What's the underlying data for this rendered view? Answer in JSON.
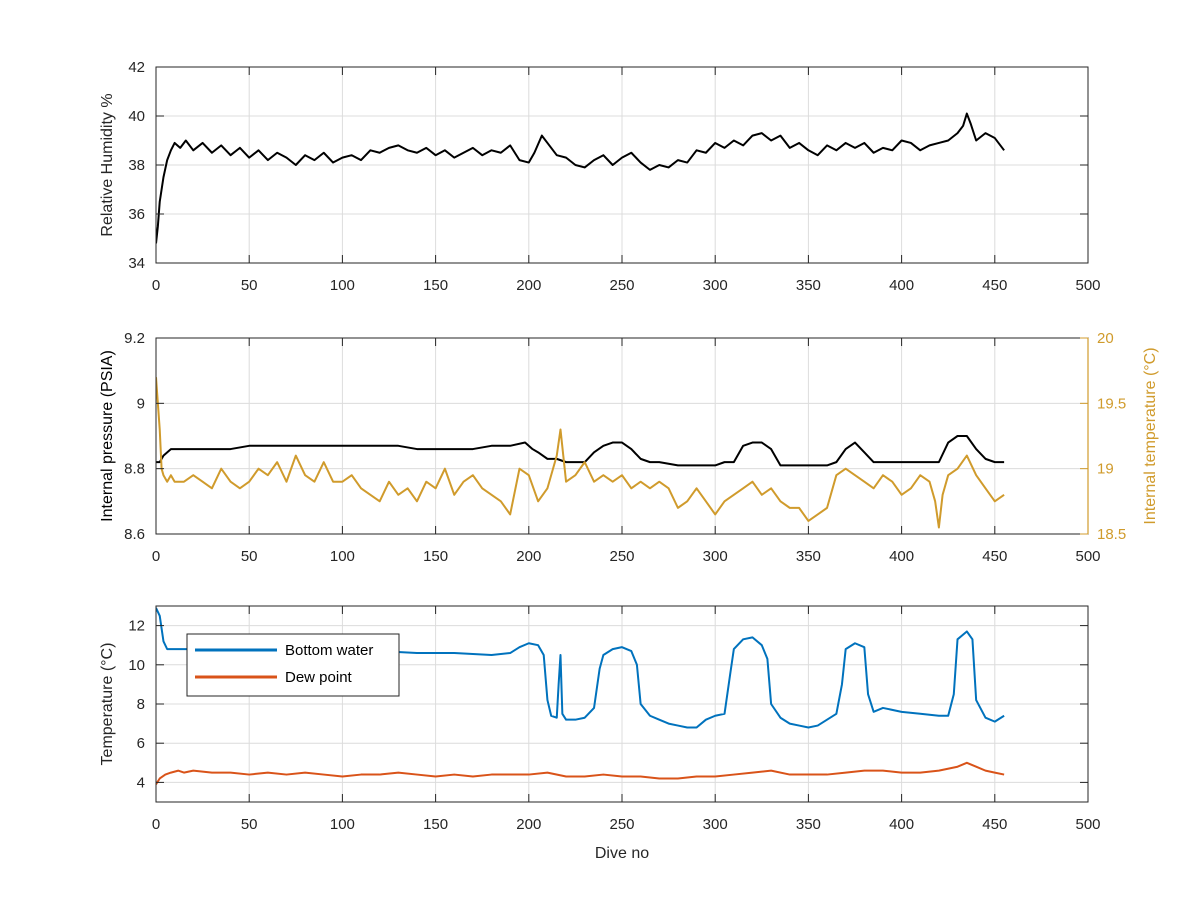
{
  "chart_data": [
    {
      "type": "line",
      "name": "humidity-panel",
      "xlim": [
        0,
        500
      ],
      "ylim": [
        34,
        42
      ],
      "xticks": [
        0,
        50,
        100,
        150,
        200,
        250,
        300,
        350,
        400,
        450,
        500
      ],
      "yticks": [
        34,
        36,
        38,
        40,
        42
      ],
      "xtick_labels": [
        "0",
        "50",
        "100",
        "150",
        "200",
        "250",
        "300",
        "350",
        "400",
        "450",
        "500"
      ],
      "ytick_labels": [
        "34",
        "36",
        "38",
        "40",
        "42"
      ],
      "ylabel": "Relative Humidity %",
      "xlabel": "",
      "grid": true,
      "series": [
        {
          "color": "#000000",
          "x": [
            0,
            1,
            2,
            4,
            6,
            8,
            10,
            13,
            16,
            20,
            25,
            30,
            35,
            40,
            45,
            50,
            55,
            60,
            65,
            70,
            75,
            80,
            85,
            90,
            95,
            100,
            105,
            110,
            115,
            120,
            125,
            130,
            135,
            140,
            145,
            150,
            155,
            160,
            165,
            170,
            175,
            180,
            185,
            190,
            195,
            200,
            203,
            207,
            210,
            215,
            220,
            225,
            230,
            235,
            240,
            245,
            250,
            255,
            260,
            265,
            270,
            275,
            280,
            285,
            290,
            295,
            300,
            305,
            310,
            315,
            320,
            325,
            330,
            335,
            340,
            345,
            350,
            355,
            360,
            365,
            370,
            375,
            380,
            385,
            390,
            395,
            400,
            405,
            410,
            415,
            420,
            425,
            430,
            433,
            435,
            437,
            440,
            445,
            450,
            455
          ],
          "y": [
            34.8,
            35.5,
            36.5,
            37.5,
            38.2,
            38.6,
            38.9,
            38.7,
            39.0,
            38.6,
            38.9,
            38.5,
            38.8,
            38.4,
            38.7,
            38.3,
            38.6,
            38.2,
            38.5,
            38.3,
            38.0,
            38.4,
            38.2,
            38.5,
            38.1,
            38.3,
            38.4,
            38.2,
            38.6,
            38.5,
            38.7,
            38.8,
            38.6,
            38.5,
            38.7,
            38.4,
            38.6,
            38.3,
            38.5,
            38.7,
            38.4,
            38.6,
            38.5,
            38.8,
            38.2,
            38.1,
            38.5,
            39.2,
            38.9,
            38.4,
            38.3,
            38.0,
            37.9,
            38.2,
            38.4,
            38.0,
            38.3,
            38.5,
            38.1,
            37.8,
            38.0,
            37.9,
            38.2,
            38.1,
            38.6,
            38.5,
            38.9,
            38.7,
            39.0,
            38.8,
            39.2,
            39.3,
            39.0,
            39.2,
            38.7,
            38.9,
            38.6,
            38.4,
            38.8,
            38.6,
            38.9,
            38.7,
            38.9,
            38.5,
            38.7,
            38.6,
            39.0,
            38.9,
            38.6,
            38.8,
            38.9,
            39.0,
            39.3,
            39.6,
            40.1,
            39.7,
            39.0,
            39.3,
            39.1,
            38.6
          ]
        }
      ]
    },
    {
      "type": "line",
      "name": "pressure-panel",
      "xlim": [
        0,
        500
      ],
      "ylim": [
        8.6,
        9.2
      ],
      "ylim_right": [
        18.5,
        20
      ],
      "xticks": [
        0,
        50,
        100,
        150,
        200,
        250,
        300,
        350,
        400,
        450,
        500
      ],
      "yticks": [
        8.6,
        8.8,
        9.0,
        9.2
      ],
      "yticks_right": [
        18.5,
        19,
        19.5,
        20
      ],
      "xtick_labels": [
        "0",
        "50",
        "100",
        "150",
        "200",
        "250",
        "300",
        "350",
        "400",
        "450",
        "500"
      ],
      "ytick_labels": [
        "8.6",
        "8.8",
        "9",
        "9.2"
      ],
      "ytick_labels_right": [
        "18.5",
        "19",
        "19.5",
        "20"
      ],
      "ylabel": "Internal pressure (PSIA)",
      "ylabel_right": "Internal temperature (°C)",
      "xlabel": "",
      "grid": true,
      "series": [
        {
          "axis": "left",
          "color": "#000000",
          "x": [
            0,
            2,
            4,
            6,
            8,
            10,
            20,
            30,
            40,
            50,
            60,
            70,
            80,
            90,
            100,
            110,
            120,
            130,
            140,
            150,
            160,
            170,
            180,
            190,
            198,
            202,
            205,
            210,
            215,
            220,
            225,
            230,
            235,
            240,
            245,
            250,
            255,
            260,
            265,
            270,
            280,
            290,
            300,
            305,
            310,
            315,
            320,
            325,
            330,
            335,
            340,
            350,
            360,
            365,
            370,
            375,
            380,
            385,
            390,
            400,
            410,
            420,
            425,
            430,
            435,
            440,
            445,
            450,
            455
          ],
          "y": [
            8.82,
            8.82,
            8.84,
            8.85,
            8.86,
            8.86,
            8.86,
            8.86,
            8.86,
            8.87,
            8.87,
            8.87,
            8.87,
            8.87,
            8.87,
            8.87,
            8.87,
            8.87,
            8.86,
            8.86,
            8.86,
            8.86,
            8.87,
            8.87,
            8.88,
            8.86,
            8.85,
            8.83,
            8.83,
            8.82,
            8.82,
            8.82,
            8.85,
            8.87,
            8.88,
            8.88,
            8.86,
            8.83,
            8.82,
            8.82,
            8.81,
            8.81,
            8.81,
            8.82,
            8.82,
            8.87,
            8.88,
            8.88,
            8.86,
            8.81,
            8.81,
            8.81,
            8.81,
            8.82,
            8.86,
            8.88,
            8.85,
            8.82,
            8.82,
            8.82,
            8.82,
            8.82,
            8.88,
            8.9,
            8.9,
            8.86,
            8.83,
            8.82,
            8.82
          ]
        },
        {
          "axis": "right",
          "color": "#d09b2c",
          "x": [
            0,
            1,
            2,
            3,
            4,
            6,
            8,
            10,
            15,
            20,
            25,
            30,
            35,
            40,
            45,
            50,
            55,
            60,
            65,
            70,
            75,
            80,
            85,
            90,
            95,
            100,
            105,
            110,
            115,
            120,
            125,
            130,
            135,
            140,
            145,
            150,
            155,
            160,
            165,
            170,
            175,
            180,
            185,
            190,
            195,
            200,
            205,
            210,
            215,
            217,
            220,
            225,
            230,
            235,
            240,
            245,
            250,
            255,
            260,
            265,
            270,
            275,
            280,
            285,
            290,
            295,
            300,
            305,
            310,
            315,
            320,
            325,
            330,
            335,
            340,
            345,
            350,
            355,
            360,
            365,
            370,
            375,
            380,
            385,
            390,
            395,
            400,
            405,
            410,
            415,
            418,
            420,
            422,
            425,
            430,
            435,
            440,
            445,
            450,
            455
          ],
          "y": [
            19.7,
            19.5,
            19.3,
            19.0,
            18.95,
            18.9,
            18.95,
            18.9,
            18.9,
            18.95,
            18.9,
            18.85,
            19.0,
            18.9,
            18.85,
            18.9,
            19.0,
            18.95,
            19.05,
            18.9,
            19.1,
            18.95,
            18.9,
            19.05,
            18.9,
            18.9,
            18.95,
            18.85,
            18.8,
            18.75,
            18.9,
            18.8,
            18.85,
            18.75,
            18.9,
            18.85,
            19.0,
            18.8,
            18.9,
            18.95,
            18.85,
            18.8,
            18.75,
            18.65,
            19.0,
            18.95,
            18.75,
            18.85,
            19.1,
            19.3,
            18.9,
            18.95,
            19.05,
            18.9,
            18.95,
            18.9,
            18.95,
            18.85,
            18.9,
            18.85,
            18.9,
            18.85,
            18.7,
            18.75,
            18.85,
            18.75,
            18.65,
            18.75,
            18.8,
            18.85,
            18.9,
            18.8,
            18.85,
            18.75,
            18.7,
            18.7,
            18.6,
            18.65,
            18.7,
            18.95,
            19.0,
            18.95,
            18.9,
            18.85,
            18.95,
            18.9,
            18.8,
            18.85,
            18.95,
            18.9,
            18.75,
            18.55,
            18.8,
            18.95,
            19.0,
            19.1,
            18.95,
            18.85,
            18.75,
            18.8
          ]
        }
      ]
    },
    {
      "type": "line",
      "name": "temperature-panel",
      "xlim": [
        0,
        500
      ],
      "ylim": [
        3,
        13
      ],
      "xticks": [
        0,
        50,
        100,
        150,
        200,
        250,
        300,
        350,
        400,
        450,
        500
      ],
      "yticks": [
        4,
        6,
        8,
        10,
        12
      ],
      "xtick_labels": [
        "0",
        "50",
        "100",
        "150",
        "200",
        "250",
        "300",
        "350",
        "400",
        "450",
        "500"
      ],
      "ytick_labels": [
        "4",
        "6",
        "8",
        "10",
        "12"
      ],
      "ylabel": "Temperature (°C)",
      "xlabel": "Dive no",
      "grid": true,
      "legend": "top-left",
      "series": [
        {
          "name": "Bottom water",
          "color": "#0072bd",
          "x": [
            0,
            2,
            4,
            6,
            8,
            10,
            20,
            30,
            40,
            60,
            80,
            100,
            120,
            140,
            160,
            180,
            190,
            195,
            200,
            205,
            208,
            210,
            212,
            215,
            216,
            217,
            218,
            220,
            225,
            230,
            235,
            238,
            240,
            245,
            250,
            255,
            258,
            260,
            265,
            270,
            275,
            280,
            285,
            290,
            295,
            300,
            305,
            308,
            310,
            315,
            320,
            325,
            328,
            330,
            335,
            340,
            345,
            350,
            355,
            360,
            365,
            368,
            370,
            375,
            380,
            382,
            385,
            390,
            400,
            410,
            420,
            425,
            428,
            430,
            435,
            438,
            440,
            445,
            450,
            455
          ],
          "y": [
            12.9,
            12.5,
            11.2,
            10.8,
            10.8,
            10.8,
            10.8,
            10.8,
            10.8,
            10.7,
            10.7,
            10.7,
            10.7,
            10.6,
            10.6,
            10.5,
            10.6,
            10.9,
            11.1,
            11.0,
            10.5,
            8.2,
            7.4,
            7.3,
            9.0,
            10.5,
            7.5,
            7.2,
            7.2,
            7.3,
            7.8,
            9.8,
            10.5,
            10.8,
            10.9,
            10.7,
            10.0,
            8.0,
            7.4,
            7.2,
            7.0,
            6.9,
            6.8,
            6.8,
            7.2,
            7.4,
            7.5,
            9.5,
            10.8,
            11.3,
            11.4,
            11.0,
            10.3,
            8.0,
            7.3,
            7.0,
            6.9,
            6.8,
            6.9,
            7.2,
            7.5,
            9.0,
            10.8,
            11.1,
            10.9,
            8.5,
            7.6,
            7.8,
            7.6,
            7.5,
            7.4,
            7.4,
            8.5,
            11.3,
            11.7,
            11.3,
            8.2,
            7.3,
            7.1,
            7.4
          ]
        },
        {
          "name": "Dew point",
          "color": "#d95319",
          "x": [
            0,
            2,
            5,
            8,
            12,
            15,
            20,
            30,
            40,
            50,
            60,
            70,
            80,
            90,
            100,
            110,
            120,
            130,
            140,
            150,
            160,
            170,
            180,
            190,
            200,
            210,
            220,
            230,
            240,
            250,
            260,
            270,
            280,
            290,
            300,
            310,
            320,
            330,
            340,
            350,
            360,
            370,
            380,
            390,
            400,
            410,
            420,
            430,
            435,
            440,
            445,
            450,
            455
          ],
          "y": [
            3.9,
            4.2,
            4.4,
            4.5,
            4.6,
            4.5,
            4.6,
            4.5,
            4.5,
            4.4,
            4.5,
            4.4,
            4.5,
            4.4,
            4.3,
            4.4,
            4.4,
            4.5,
            4.4,
            4.3,
            4.4,
            4.3,
            4.4,
            4.4,
            4.4,
            4.5,
            4.3,
            4.3,
            4.4,
            4.3,
            4.3,
            4.2,
            4.2,
            4.3,
            4.3,
            4.4,
            4.5,
            4.6,
            4.4,
            4.4,
            4.4,
            4.5,
            4.6,
            4.6,
            4.5,
            4.5,
            4.6,
            4.8,
            5.0,
            4.8,
            4.6,
            4.5,
            4.4
          ]
        }
      ]
    }
  ]
}
